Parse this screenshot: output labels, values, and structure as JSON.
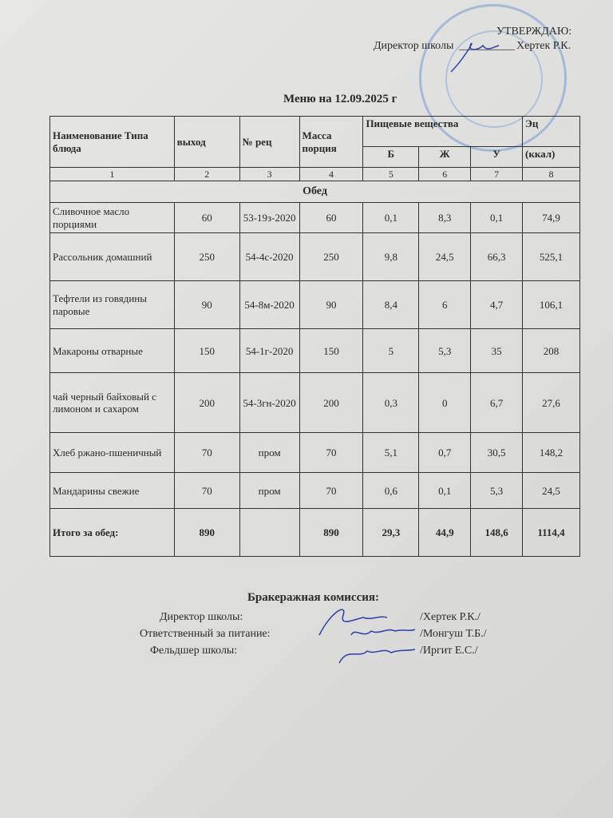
{
  "approval": {
    "heading": "УТВЕРЖДАЮ:",
    "role": "Директор школы",
    "blank": "__________",
    "name": "Хертек Р.К."
  },
  "title": "Меню на 12.09.2025 г",
  "table": {
    "headers": {
      "name": "Наименование Типа блюда",
      "output": "выход",
      "recipe": "№ рец",
      "mass": "Масса порция",
      "nutrients": "Пищевые вещества",
      "b": "Б",
      "zh": "Ж",
      "u": "У",
      "energy_top": "Эц",
      "energy_unit": "(ккал)"
    },
    "col_numbers": [
      "1",
      "2",
      "3",
      "4",
      "5",
      "6",
      "7",
      "8"
    ],
    "section": "Обед",
    "rows": [
      [
        "Сливочное масло порциями",
        "60",
        "53-19з-2020",
        "60",
        "0,1",
        "8,3",
        "0,1",
        "74,9"
      ],
      [
        "Рассольник домашний",
        "250",
        "54-4с-2020",
        "250",
        "9,8",
        "24,5",
        "66,3",
        "525,1"
      ],
      [
        "Тефтели из говядины паровые",
        "90",
        "54-8м-2020",
        "90",
        "8,4",
        "6",
        "4,7",
        "106,1"
      ],
      [
        "Макароны отварные",
        "150",
        "54-1г-2020",
        "150",
        "5",
        "5,3",
        "35",
        "208"
      ],
      [
        "чай черный байховый с лимоном и сахаром",
        "200",
        "54-3гн-2020",
        "200",
        "0,3",
        "0",
        "6,7",
        "27,6"
      ],
      [
        "Хлеб ржано-пшеничный",
        "70",
        "пром",
        "70",
        "5,1",
        "0,7",
        "30,5",
        "148,2"
      ],
      [
        "Мандарины свежие",
        "70",
        "пром",
        "70",
        "0,6",
        "0,1",
        "5,3",
        "24,5"
      ]
    ],
    "total": [
      "Итого за обед:",
      "890",
      "",
      "890",
      "29,3",
      "44,9",
      "148,6",
      "1114,4"
    ]
  },
  "commission": {
    "heading": "Бракеражная комиссия:",
    "members": [
      {
        "role": "Директор школы:",
        "name": "/Хертек Р.К./"
      },
      {
        "role": "Ответственный за питание:",
        "name": "/Монгуш Т.Б./"
      },
      {
        "role": "Фельдшер школы:",
        "name": "/Иргит Е.С./"
      }
    ]
  },
  "colors": {
    "stamp": "#5a8cd2",
    "signature": "#2c3fa8"
  }
}
